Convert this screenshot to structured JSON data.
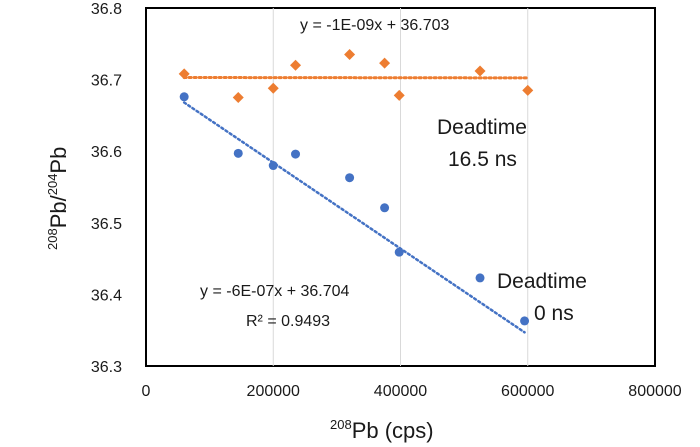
{
  "chart_data": {
    "type": "scatter",
    "xlabel": {
      "sup": "208",
      "text": "Pb (cps)"
    },
    "ylabel": {
      "sup1": "208",
      "mid": "Pb/",
      "sup2": "204",
      "text": "Pb"
    },
    "xlim": [
      0,
      800000
    ],
    "ylim": [
      36.3,
      36.8
    ],
    "x_ticks": [
      0,
      200000,
      400000,
      600000,
      800000
    ],
    "x_tick_labels": [
      "0",
      "200000",
      "400000",
      "600000",
      "800000"
    ],
    "y_ticks": [
      36.3,
      36.4,
      36.5,
      36.6,
      36.7,
      36.8
    ],
    "y_tick_labels": [
      "36.3",
      "36.4",
      "36.5",
      "36.6",
      "36.7",
      "36.8"
    ],
    "grid": {
      "vertical": true,
      "horizontal": false
    },
    "series": [
      {
        "label": "Deadtime 16.5 ns",
        "color": "#ED7D31",
        "marker": "diamond",
        "points": [
          {
            "x": 60000,
            "y": 36.708
          },
          {
            "x": 145000,
            "y": 36.675
          },
          {
            "x": 200000,
            "y": 36.688
          },
          {
            "x": 235000,
            "y": 36.72
          },
          {
            "x": 320000,
            "y": 36.735
          },
          {
            "x": 375000,
            "y": 36.723
          },
          {
            "x": 398000,
            "y": 36.678
          },
          {
            "x": 525000,
            "y": 36.712
          },
          {
            "x": 600000,
            "y": 36.685
          }
        ],
        "trendline": {
          "x_range": [
            60000,
            600000
          ],
          "slope": -1e-09,
          "intercept": 36.703
        },
        "equation": "y = -1E-09x + 36.703",
        "annotation": [
          "Deadtime",
          "16.5 ns"
        ]
      },
      {
        "label": "Deadtime 0 ns",
        "color": "#4472C4",
        "marker": "circle",
        "points": [
          {
            "x": 60000,
            "y": 36.676
          },
          {
            "x": 145000,
            "y": 36.597
          },
          {
            "x": 200000,
            "y": 36.58
          },
          {
            "x": 235000,
            "y": 36.596
          },
          {
            "x": 320000,
            "y": 36.563
          },
          {
            "x": 375000,
            "y": 36.521
          },
          {
            "x": 398000,
            "y": 36.459
          },
          {
            "x": 525000,
            "y": 36.423
          },
          {
            "x": 595000,
            "y": 36.363
          }
        ],
        "trendline": {
          "x_range": [
            60000,
            595000
          ],
          "slope": -6e-07,
          "intercept": 36.704
        },
        "equation": "y = -6E-07x + 36.704",
        "r2": "R² = 0.9493",
        "annotation": [
          "Deadtime",
          "0 ns"
        ]
      }
    ]
  }
}
